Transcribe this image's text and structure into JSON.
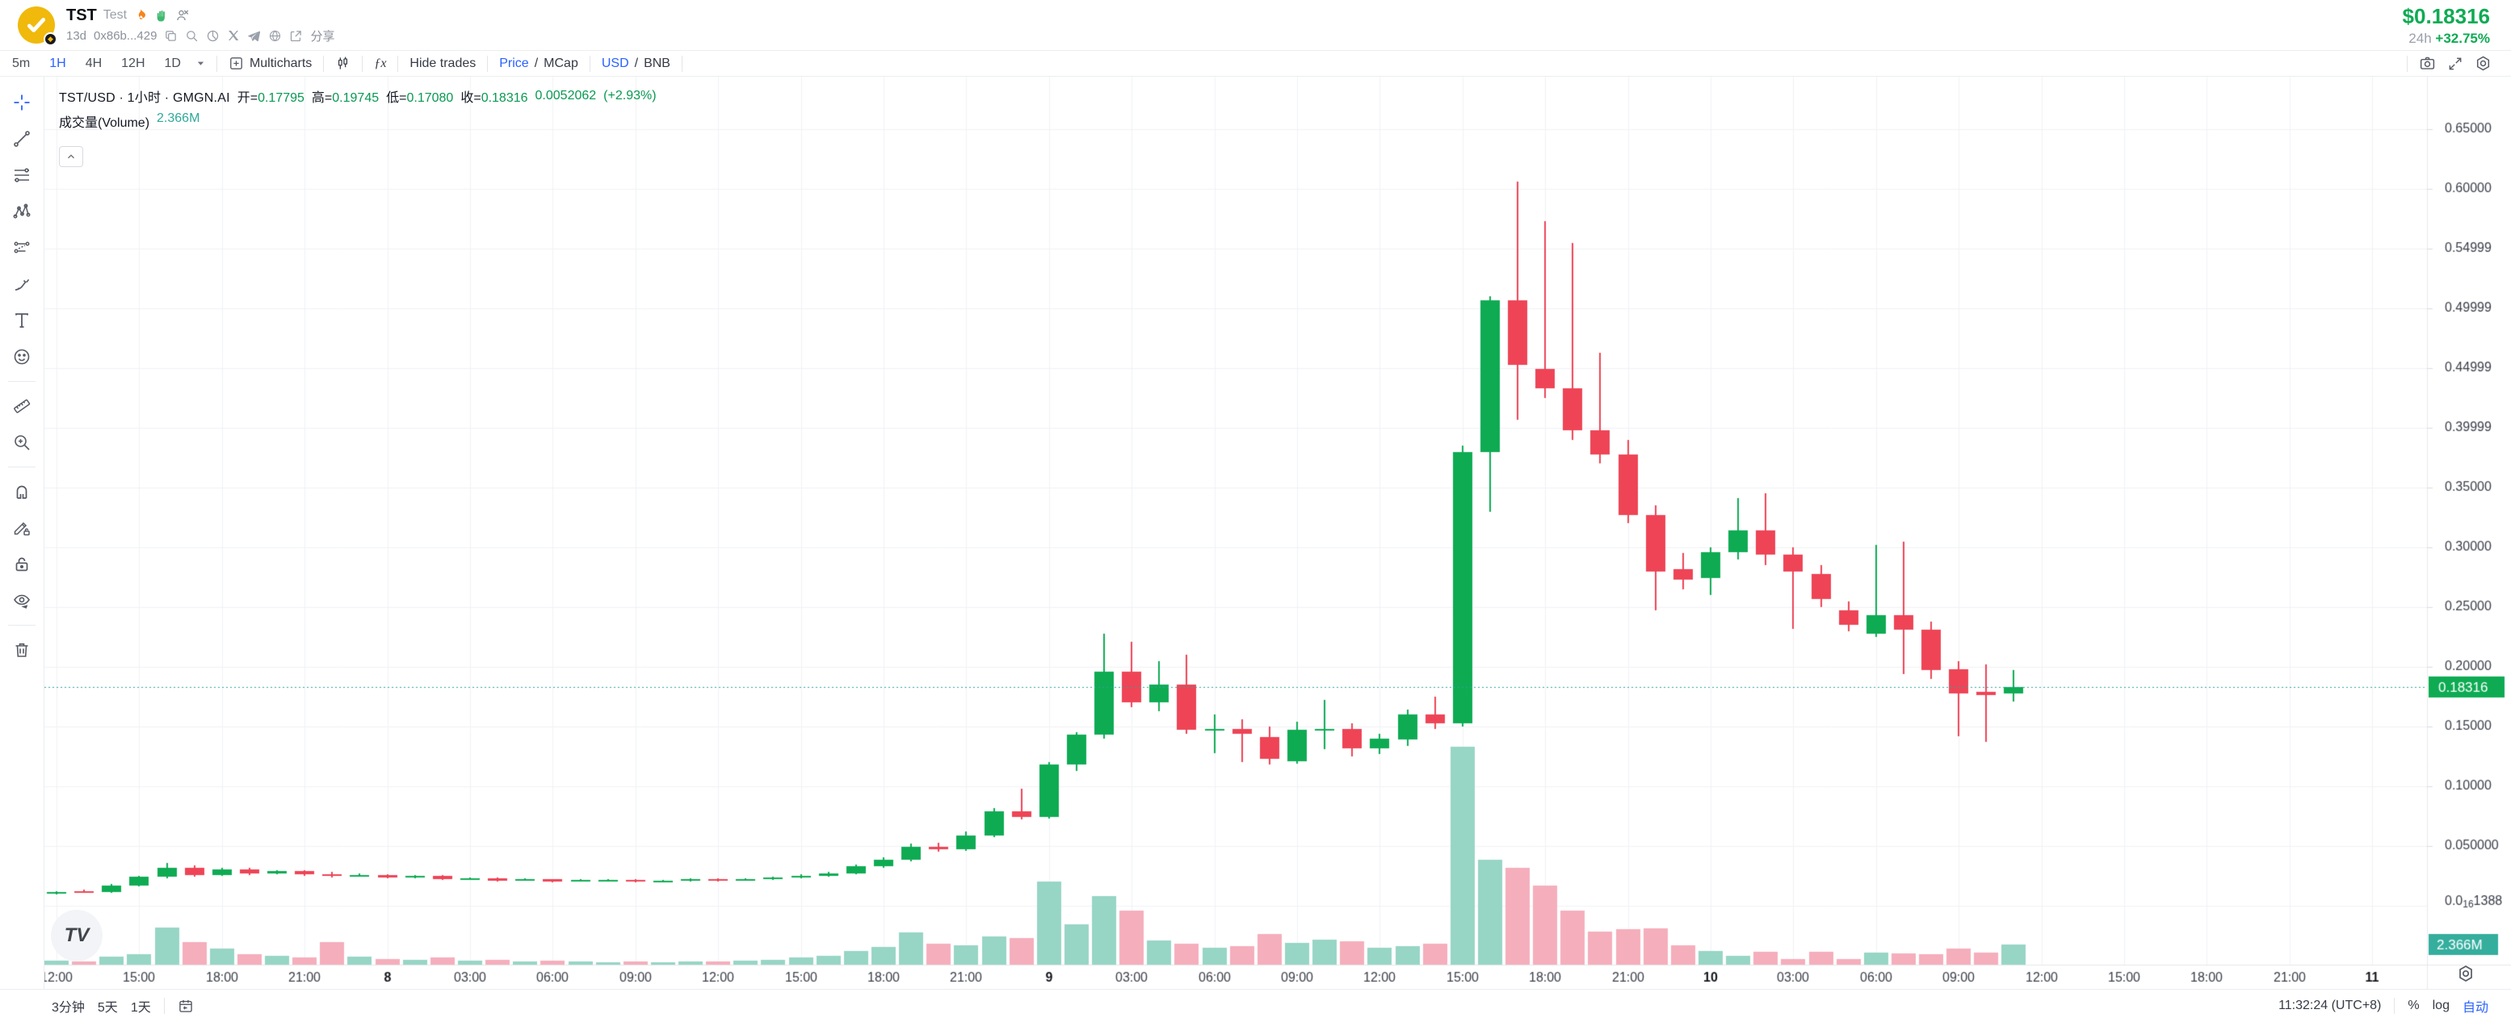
{
  "header": {
    "token": {
      "symbol": "TST",
      "name": "Test",
      "age": "13d",
      "address": "0x86b...429",
      "share_label": "分享"
    },
    "price": {
      "value": "$0.18316",
      "period": "24h",
      "change": "+32.75%"
    }
  },
  "toolbar": {
    "timeframes": [
      "5m",
      "1H",
      "4H",
      "12H",
      "1D"
    ],
    "active_timeframe": "1H",
    "multicharts_label": "Multicharts",
    "fx_icon_text": "ƒx",
    "hide_trades_label": "Hide trades",
    "slash": "/",
    "price_mcap": {
      "active": "Price",
      "inactive": "MCap"
    },
    "usd_bnb": {
      "active": "USD",
      "inactive": "BNB"
    }
  },
  "legend": {
    "title": "TST/USD · 1小时 · GMGN.AI",
    "open_label": "开=",
    "open": "0.17795",
    "high_label": "高=",
    "high": "0.19745",
    "low_label": "低=",
    "low": "0.17080",
    "close_label": "收=",
    "close": "0.18316",
    "change_abs": "0.0052062",
    "change_pct": "(+2.93%)",
    "volume_label": "成交量(Volume)",
    "volume_value": "2.366M"
  },
  "price_axis": {
    "labels": [
      {
        "text": "0.65000",
        "price": 0.65
      },
      {
        "text": "0.60000",
        "price": 0.6
      },
      {
        "text": "0.54999",
        "price": 0.55
      },
      {
        "text": "0.49999",
        "price": 0.5
      },
      {
        "text": "0.44999",
        "price": 0.45
      },
      {
        "text": "0.39999",
        "price": 0.4
      },
      {
        "text": "0.35000",
        "price": 0.35
      },
      {
        "text": "0.30000",
        "price": 0.3
      },
      {
        "text": "0.25000",
        "price": 0.25
      },
      {
        "text": "0.20000",
        "price": 0.2
      },
      {
        "text": "0.15000",
        "price": 0.15
      },
      {
        "text": "0.10000",
        "price": 0.1
      },
      {
        "text": "0.050000",
        "price": 0.05
      }
    ],
    "zero_label": {
      "prefix": "0.0",
      "sub": "16",
      "digits": "1388"
    },
    "current_badge": "0.18316",
    "volume_badge": "2.366M"
  },
  "time_axis": {
    "ticks": [
      {
        "slot": 0,
        "label": "12:00",
        "bold": false
      },
      {
        "slot": 3,
        "label": "15:00",
        "bold": false
      },
      {
        "slot": 6,
        "label": "18:00",
        "bold": false
      },
      {
        "slot": 9,
        "label": "21:00",
        "bold": false
      },
      {
        "slot": 12,
        "label": "8",
        "bold": true
      },
      {
        "slot": 15,
        "label": "03:00",
        "bold": false
      },
      {
        "slot": 18,
        "label": "06:00",
        "bold": false
      },
      {
        "slot": 21,
        "label": "09:00",
        "bold": false
      },
      {
        "slot": 24,
        "label": "12:00",
        "bold": false
      },
      {
        "slot": 27,
        "label": "15:00",
        "bold": false
      },
      {
        "slot": 30,
        "label": "18:00",
        "bold": false
      },
      {
        "slot": 33,
        "label": "21:00",
        "bold": false
      },
      {
        "slot": 36,
        "label": "9",
        "bold": true
      },
      {
        "slot": 39,
        "label": "03:00",
        "bold": false
      },
      {
        "slot": 42,
        "label": "06:00",
        "bold": false
      },
      {
        "slot": 45,
        "label": "09:00",
        "bold": false
      },
      {
        "slot": 48,
        "label": "12:00",
        "bold": false
      },
      {
        "slot": 51,
        "label": "15:00",
        "bold": false
      },
      {
        "slot": 54,
        "label": "18:00",
        "bold": false
      },
      {
        "slot": 57,
        "label": "21:00",
        "bold": false
      },
      {
        "slot": 60,
        "label": "10",
        "bold": true
      },
      {
        "slot": 63,
        "label": "03:00",
        "bold": false
      },
      {
        "slot": 66,
        "label": "06:00",
        "bold": false
      },
      {
        "slot": 69,
        "label": "09:00",
        "bold": false
      },
      {
        "slot": 72,
        "label": "12:00",
        "bold": false
      },
      {
        "slot": 75,
        "label": "15:00",
        "bold": false
      },
      {
        "slot": 78,
        "label": "18:00",
        "bold": false
      },
      {
        "slot": 81,
        "label": "21:00",
        "bold": false
      },
      {
        "slot": 84,
        "label": "11",
        "bold": true
      }
    ]
  },
  "chart_data": {
    "type": "candlestick+volume",
    "symbol": "TST/USD",
    "interval": "1小时 (1H)",
    "title": "TST/USD · 1小时 · GMGN.AI",
    "current_price": 0.18316,
    "last_volume_m": 2.366,
    "volume_max_m": 25.4,
    "y_axis": {
      "min": 0,
      "max": 0.7,
      "grid_step": 0.05
    },
    "grid_prices": [
      0,
      0.05,
      0.1,
      0.15,
      0.2,
      0.25,
      0.3,
      0.35,
      0.4,
      0.45,
      0.5,
      0.55,
      0.6,
      0.65
    ],
    "colors": {
      "up": "#0eab53",
      "down": "#ee4456",
      "vol_up": "#97d5c5",
      "vol_down": "#f5aebb",
      "price_line": "#2aa79b",
      "vol_badge": "#35ae9e",
      "axis_text": "#3a3e49",
      "grid": "#f1f2f6"
    },
    "columns": [
      "day",
      "time",
      "open",
      "high",
      "low",
      "close",
      "volume_m"
    ],
    "candles": [
      [
        7,
        "12:00",
        0.01,
        0.0125,
        0.0092,
        0.0118,
        0.5
      ],
      [
        7,
        "13:00",
        0.0122,
        0.0132,
        0.0105,
        0.0112,
        0.4
      ],
      [
        7,
        "14:00",
        0.0112,
        0.018,
        0.0108,
        0.017,
        0.9
      ],
      [
        7,
        "15:00",
        0.017,
        0.025,
        0.0162,
        0.024,
        1.2
      ],
      [
        7,
        "16:00",
        0.024,
        0.036,
        0.023,
        0.0318,
        4.3
      ],
      [
        7,
        "17:00",
        0.0318,
        0.0335,
        0.0242,
        0.0258,
        2.6
      ],
      [
        7,
        "18:00",
        0.0258,
        0.032,
        0.025,
        0.0302,
        1.9
      ],
      [
        7,
        "19:00",
        0.0302,
        0.0315,
        0.0258,
        0.0272,
        1.2
      ],
      [
        7,
        "20:00",
        0.0272,
        0.03,
        0.0262,
        0.0288,
        1.0
      ],
      [
        7,
        "21:00",
        0.0288,
        0.0295,
        0.0252,
        0.0262,
        0.8
      ],
      [
        7,
        "22:00",
        0.0262,
        0.0285,
        0.0238,
        0.0248,
        2.6
      ],
      [
        7,
        "23:00",
        0.0248,
        0.0268,
        0.024,
        0.0258,
        0.9
      ],
      [
        8,
        "00:00",
        0.0258,
        0.0265,
        0.0228,
        0.0238,
        0.7
      ],
      [
        8,
        "01:00",
        0.0238,
        0.0258,
        0.023,
        0.025,
        0.6
      ],
      [
        8,
        "02:00",
        0.025,
        0.0255,
        0.0215,
        0.0222,
        0.8
      ],
      [
        8,
        "03:00",
        0.0222,
        0.0238,
        0.0215,
        0.023,
        0.5
      ],
      [
        8,
        "04:00",
        0.023,
        0.0235,
        0.0205,
        0.0212,
        0.6
      ],
      [
        8,
        "05:00",
        0.0212,
        0.0228,
        0.0208,
        0.022,
        0.4
      ],
      [
        8,
        "06:00",
        0.022,
        0.0226,
        0.0198,
        0.0206,
        0.5
      ],
      [
        8,
        "07:00",
        0.0206,
        0.022,
        0.02,
        0.0213,
        0.4
      ],
      [
        8,
        "08:00",
        0.0213,
        0.0225,
        0.0205,
        0.0218,
        0.3
      ],
      [
        8,
        "09:00",
        0.0218,
        0.0222,
        0.0198,
        0.0205,
        0.4
      ],
      [
        8,
        "10:00",
        0.0205,
        0.0218,
        0.02,
        0.0212,
        0.3
      ],
      [
        8,
        "11:00",
        0.0212,
        0.0228,
        0.0206,
        0.0222,
        0.4
      ],
      [
        8,
        "12:00",
        0.0222,
        0.0228,
        0.0205,
        0.0214,
        0.4
      ],
      [
        8,
        "13:00",
        0.0214,
        0.0232,
        0.0208,
        0.0226,
        0.5
      ],
      [
        8,
        "14:00",
        0.0226,
        0.0245,
        0.0218,
        0.0238,
        0.6
      ],
      [
        8,
        "15:00",
        0.0238,
        0.0262,
        0.023,
        0.0252,
        0.8
      ],
      [
        8,
        "16:00",
        0.0252,
        0.0285,
        0.0244,
        0.0272,
        1.0
      ],
      [
        8,
        "17:00",
        0.0272,
        0.0345,
        0.0265,
        0.0328,
        1.6
      ],
      [
        8,
        "18:00",
        0.0328,
        0.0408,
        0.0318,
        0.0388,
        2.1
      ],
      [
        8,
        "19:00",
        0.0388,
        0.052,
        0.0375,
        0.049,
        3.8
      ],
      [
        8,
        "20:00",
        0.049,
        0.053,
        0.0455,
        0.0472,
        2.4
      ],
      [
        8,
        "21:00",
        0.0472,
        0.062,
        0.046,
        0.059,
        2.3
      ],
      [
        8,
        "22:00",
        0.059,
        0.082,
        0.0575,
        0.079,
        3.3
      ],
      [
        8,
        "23:00",
        0.079,
        0.098,
        0.072,
        0.0745,
        3.1
      ],
      [
        9,
        "00:00",
        0.0745,
        0.12,
        0.073,
        0.118,
        9.7
      ],
      [
        9,
        "01:00",
        0.118,
        0.145,
        0.113,
        0.143,
        4.7
      ],
      [
        9,
        "02:00",
        0.143,
        0.228,
        0.14,
        0.196,
        8.0
      ],
      [
        9,
        "03:00",
        0.196,
        0.221,
        0.166,
        0.17,
        6.3
      ],
      [
        9,
        "04:00",
        0.17,
        0.205,
        0.163,
        0.185,
        2.8
      ],
      [
        9,
        "05:00",
        0.185,
        0.21,
        0.144,
        0.147,
        2.4
      ],
      [
        9,
        "06:00",
        0.147,
        0.16,
        0.128,
        0.148,
        2.0
      ],
      [
        9,
        "07:00",
        0.148,
        0.156,
        0.12,
        0.144,
        2.2
      ],
      [
        9,
        "08:00",
        0.141,
        0.15,
        0.118,
        0.123,
        3.6
      ],
      [
        9,
        "09:00",
        0.121,
        0.154,
        0.119,
        0.147,
        2.5
      ],
      [
        9,
        "10:00",
        0.147,
        0.1725,
        0.131,
        0.148,
        2.9
      ],
      [
        9,
        "11:00",
        0.148,
        0.153,
        0.125,
        0.132,
        2.7
      ],
      [
        9,
        "12:00",
        0.132,
        0.144,
        0.127,
        0.14,
        2.0
      ],
      [
        9,
        "13:00",
        0.139,
        0.164,
        0.134,
        0.16,
        2.2
      ],
      [
        9,
        "14:00",
        0.16,
        0.175,
        0.148,
        0.153,
        2.4
      ],
      [
        9,
        "15:00",
        0.153,
        0.385,
        0.15,
        0.38,
        25.4
      ],
      [
        9,
        "16:00",
        0.38,
        0.51,
        0.33,
        0.507,
        12.2
      ],
      [
        9,
        "17:00",
        0.507,
        0.606,
        0.407,
        0.453,
        11.3
      ],
      [
        9,
        "18:00",
        0.449,
        0.573,
        0.425,
        0.433,
        9.2
      ],
      [
        9,
        "19:00",
        0.433,
        0.555,
        0.39,
        0.398,
        6.3
      ],
      [
        9,
        "20:00",
        0.398,
        0.463,
        0.37,
        0.378,
        3.9
      ],
      [
        9,
        "21:00",
        0.378,
        0.39,
        0.32,
        0.327,
        4.1
      ],
      [
        9,
        "22:00",
        0.327,
        0.335,
        0.247,
        0.28,
        4.2
      ],
      [
        9,
        "23:00",
        0.282,
        0.295,
        0.265,
        0.273,
        2.3
      ],
      [
        10,
        "00:00",
        0.274,
        0.3,
        0.26,
        0.296,
        1.6
      ],
      [
        10,
        "01:00",
        0.296,
        0.341,
        0.29,
        0.314,
        1.0
      ],
      [
        10,
        "02:00",
        0.314,
        0.345,
        0.285,
        0.294,
        1.5
      ],
      [
        10,
        "03:00",
        0.294,
        0.3,
        0.232,
        0.28,
        0.7
      ],
      [
        10,
        "04:00",
        0.278,
        0.285,
        0.25,
        0.257,
        1.5
      ],
      [
        10,
        "05:00",
        0.247,
        0.255,
        0.23,
        0.235,
        0.7
      ],
      [
        10,
        "06:00",
        0.228,
        0.302,
        0.225,
        0.243,
        1.4
      ],
      [
        10,
        "07:00",
        0.243,
        0.305,
        0.194,
        0.231,
        1.3
      ],
      [
        10,
        "08:00",
        0.231,
        0.238,
        0.19,
        0.197,
        1.2
      ],
      [
        10,
        "09:00",
        0.198,
        0.205,
        0.142,
        0.178,
        1.9
      ],
      [
        10,
        "10:00",
        0.179,
        0.202,
        0.137,
        0.1765,
        1.4
      ],
      [
        10,
        "11:00",
        0.17795,
        0.19745,
        0.1708,
        0.18316,
        2.366
      ]
    ]
  },
  "bottom_bar": {
    "range_buttons": [
      "3分钟",
      "5天",
      "1天"
    ],
    "clock": "11:32:24 (UTC+8)",
    "percent_label": "%",
    "log_label": "log",
    "auto_label": "自动"
  },
  "misc": {
    "watermark": "TV",
    "chevron": "collapse-volume"
  }
}
